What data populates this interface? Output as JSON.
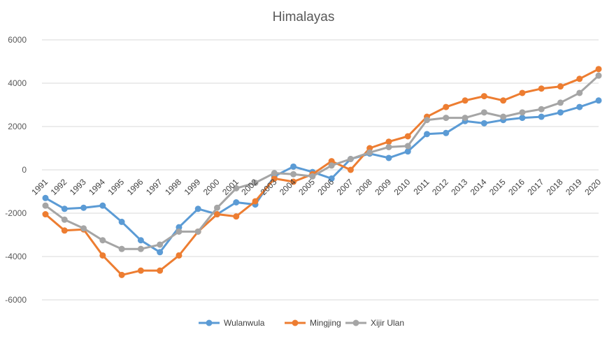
{
  "chart_data": {
    "type": "line",
    "title": "Himalayas",
    "xlabel": "",
    "ylabel": "",
    "ylim": [
      -6000,
      6000
    ],
    "yticks": [
      -6000,
      -4000,
      -2000,
      0,
      2000,
      4000,
      6000
    ],
    "ytick_labels": [
      "-6000",
      "-4000",
      "-2000",
      "0",
      "2000",
      "4000",
      "6000"
    ],
    "grid": true,
    "legend": "bottom",
    "categories": [
      "1991",
      "1992",
      "1993",
      "1994",
      "1995",
      "1996",
      "1997",
      "1998",
      "1999",
      "2000",
      "2001",
      "2002",
      "2003",
      "2004",
      "2005",
      "2006",
      "2007",
      "2008",
      "2009",
      "2010",
      "2011",
      "2012",
      "2013",
      "2014",
      "2015",
      "2016",
      "2017",
      "2018",
      "2019",
      "2020"
    ],
    "series": [
      {
        "name": "Wulanwula",
        "color": "#5B9BD5",
        "values": [
          -1300,
          -1800,
          -1750,
          -1650,
          -2400,
          -3250,
          -3800,
          -2650,
          -1800,
          -2050,
          -1500,
          -1600,
          -300,
          150,
          -100,
          -400,
          500,
          750,
          550,
          850,
          1650,
          1700,
          2250,
          2150,
          2300,
          2400,
          2450,
          2650,
          2900,
          3200
        ]
      },
      {
        "name": "Mingjing",
        "color": "#ED7D31",
        "values": [
          -2050,
          -2800,
          -2750,
          -3950,
          -4850,
          -4650,
          -4650,
          -3950,
          -2850,
          -2050,
          -2150,
          -1450,
          -400,
          -550,
          -200,
          400,
          0,
          1000,
          1300,
          1550,
          2450,
          2900,
          3200,
          3400,
          3200,
          3550,
          3750,
          3850,
          4200,
          4650
        ]
      },
      {
        "name": "Xijir Ulan",
        "color": "#A5A5A5",
        "values": [
          -1650,
          -2300,
          -2700,
          -3250,
          -3650,
          -3650,
          -3450,
          -2850,
          -2850,
          -1750,
          -850,
          -600,
          -150,
          -200,
          -300,
          200,
          500,
          800,
          1050,
          1100,
          2300,
          2400,
          2400,
          2650,
          2450,
          2650,
          2800,
          3100,
          3550,
          4350
        ]
      }
    ]
  }
}
